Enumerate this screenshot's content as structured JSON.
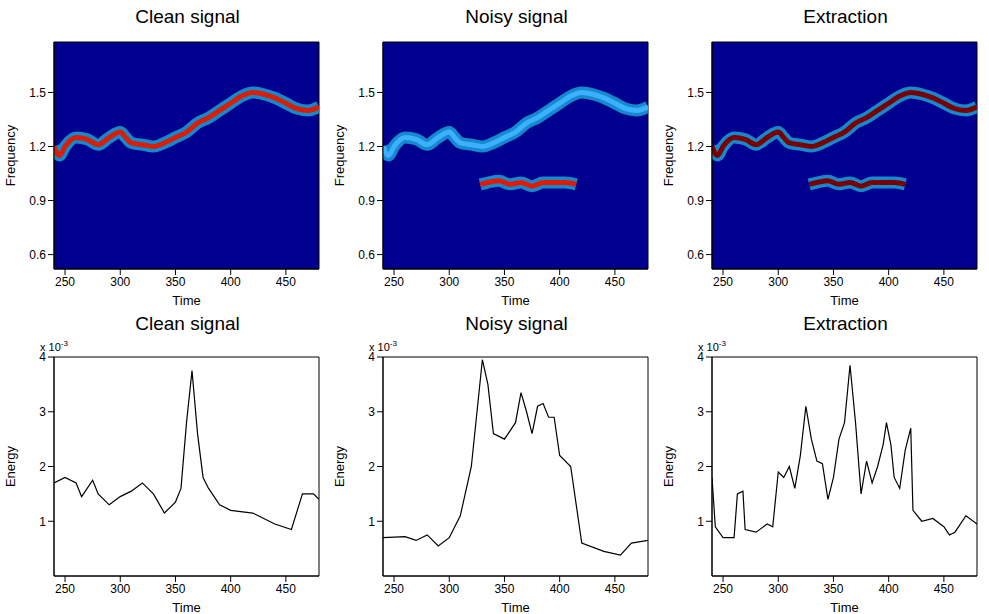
{
  "chart_data": [
    {
      "type": "heatmap",
      "title": "Clean signal",
      "x_label": "Time",
      "y_label": "Frequency",
      "xlim": [
        240,
        480
      ],
      "xticks": [
        250,
        300,
        350,
        400,
        450
      ],
      "ylim": [
        0.52,
        1.78
      ],
      "yticks": [
        0.6,
        0.9,
        1.2,
        1.5
      ],
      "series": [
        {
          "color": "#d81e05",
          "x": [
            240,
            245,
            250,
            260,
            270,
            280,
            290,
            300,
            305,
            310,
            320,
            330,
            340,
            350,
            360,
            370,
            380,
            390,
            400,
            410,
            420,
            430,
            440,
            450,
            460,
            470,
            480
          ],
          "values": [
            1.2,
            1.15,
            1.2,
            1.25,
            1.24,
            1.21,
            1.25,
            1.28,
            1.25,
            1.22,
            1.21,
            1.2,
            1.22,
            1.25,
            1.28,
            1.33,
            1.36,
            1.4,
            1.44,
            1.48,
            1.5,
            1.49,
            1.47,
            1.44,
            1.41,
            1.4,
            1.42
          ]
        }
      ]
    },
    {
      "type": "heatmap",
      "title": "Noisy signal",
      "x_label": "Time",
      "y_label": "Frequency",
      "xlim": [
        240,
        480
      ],
      "xticks": [
        250,
        300,
        350,
        400,
        450
      ],
      "ylim": [
        0.52,
        1.78
      ],
      "yticks": [
        0.6,
        0.9,
        1.2,
        1.5
      ],
      "series": [
        {
          "color": "#3ab0ff",
          "x": [
            240,
            245,
            250,
            260,
            270,
            280,
            290,
            300,
            305,
            310,
            320,
            330,
            340,
            350,
            360,
            370,
            380,
            390,
            400,
            410,
            420,
            430,
            440,
            450,
            460,
            470,
            480
          ],
          "values": [
            1.2,
            1.15,
            1.2,
            1.25,
            1.24,
            1.21,
            1.25,
            1.28,
            1.25,
            1.22,
            1.21,
            1.2,
            1.22,
            1.25,
            1.28,
            1.33,
            1.36,
            1.4,
            1.44,
            1.48,
            1.5,
            1.49,
            1.47,
            1.44,
            1.41,
            1.4,
            1.42
          ]
        },
        {
          "color": "#e01a05",
          "x": [
            328,
            335,
            345,
            355,
            365,
            375,
            385,
            395,
            405,
            415
          ],
          "values": [
            0.99,
            1.0,
            1.01,
            0.99,
            1.0,
            0.98,
            1.0,
            1.0,
            1.0,
            0.99
          ]
        }
      ]
    },
    {
      "type": "heatmap",
      "title": "Extraction",
      "x_label": "Time",
      "y_label": "Frequency",
      "xlim": [
        240,
        480
      ],
      "xticks": [
        250,
        300,
        350,
        400,
        450
      ],
      "ylim": [
        0.52,
        1.78
      ],
      "yticks": [
        0.6,
        0.9,
        1.2,
        1.5
      ],
      "series": [
        {
          "color": "#7a0000",
          "x": [
            240,
            245,
            250,
            260,
            270,
            280,
            290,
            300,
            305,
            310,
            320,
            330,
            340,
            350,
            360,
            370,
            380,
            390,
            400,
            410,
            420,
            430,
            440,
            450,
            460,
            470,
            480
          ],
          "values": [
            1.2,
            1.15,
            1.2,
            1.25,
            1.24,
            1.21,
            1.25,
            1.28,
            1.25,
            1.22,
            1.21,
            1.2,
            1.22,
            1.25,
            1.28,
            1.33,
            1.36,
            1.4,
            1.44,
            1.48,
            1.5,
            1.49,
            1.47,
            1.44,
            1.41,
            1.4,
            1.42
          ]
        },
        {
          "color": "#7a0000",
          "x": [
            328,
            335,
            345,
            355,
            365,
            375,
            385,
            395,
            405,
            415
          ],
          "values": [
            0.99,
            1.0,
            1.01,
            0.99,
            1.0,
            0.98,
            1.0,
            1.0,
            1.0,
            0.99
          ]
        }
      ]
    },
    {
      "type": "line",
      "title": "Clean signal",
      "x_label": "Time",
      "y_label": "Energy",
      "color": "#000000",
      "annotation": {
        "text": "x 10",
        "superscript": "-3"
      },
      "xlim": [
        240,
        480
      ],
      "xticks": [
        250,
        300,
        350,
        400,
        450
      ],
      "ylim": [
        0,
        0.004
      ],
      "yticks": [
        {
          "value": 0.001,
          "label": "1"
        },
        {
          "value": 0.002,
          "label": "2"
        },
        {
          "value": 0.003,
          "label": "3"
        },
        {
          "value": 0.004,
          "label": "4"
        }
      ],
      "x": [
        240,
        250,
        260,
        265,
        275,
        280,
        290,
        300,
        310,
        320,
        330,
        340,
        350,
        355,
        360,
        365,
        370,
        375,
        380,
        390,
        400,
        420,
        440,
        455,
        465,
        475,
        480
      ],
      "values": [
        0.0017,
        0.0018,
        0.0017,
        0.00145,
        0.00175,
        0.0015,
        0.0013,
        0.00145,
        0.00155,
        0.0017,
        0.0015,
        0.00115,
        0.00135,
        0.0016,
        0.0028,
        0.00375,
        0.0026,
        0.0018,
        0.0016,
        0.0013,
        0.0012,
        0.00115,
        0.00095,
        0.00085,
        0.0015,
        0.0015,
        0.0014
      ]
    },
    {
      "type": "line",
      "title": "Noisy signal",
      "x_label": "Time",
      "y_label": "Energy",
      "color": "#000000",
      "annotation": {
        "text": "x 10",
        "superscript": "-3"
      },
      "xlim": [
        240,
        480
      ],
      "xticks": [
        250,
        300,
        350,
        400,
        450
      ],
      "ylim": [
        0,
        0.004
      ],
      "yticks": [
        {
          "value": 0.001,
          "label": "1"
        },
        {
          "value": 0.002,
          "label": "2"
        },
        {
          "value": 0.003,
          "label": "3"
        },
        {
          "value": 0.004,
          "label": "4"
        }
      ],
      "x": [
        240,
        260,
        270,
        280,
        290,
        300,
        310,
        320,
        330,
        335,
        340,
        350,
        360,
        365,
        370,
        375,
        380,
        385,
        390,
        395,
        400,
        410,
        415,
        420,
        440,
        455,
        465,
        480
      ],
      "values": [
        0.0007,
        0.00072,
        0.00065,
        0.00075,
        0.00055,
        0.0007,
        0.0011,
        0.002,
        0.00395,
        0.0035,
        0.0026,
        0.0025,
        0.0028,
        0.00335,
        0.003,
        0.0026,
        0.0031,
        0.00315,
        0.0029,
        0.0029,
        0.0022,
        0.002,
        0.0013,
        0.0006,
        0.00045,
        0.00038,
        0.0006,
        0.00065
      ]
    },
    {
      "type": "line",
      "title": "Extraction",
      "x_label": "Time",
      "y_label": "Energy",
      "color": "#000000",
      "annotation": {
        "text": "x 10",
        "superscript": "-3"
      },
      "xlim": [
        240,
        480
      ],
      "xticks": [
        250,
        300,
        350,
        400,
        450
      ],
      "ylim": [
        0,
        0.004
      ],
      "yticks": [
        {
          "value": 0.001,
          "label": "1"
        },
        {
          "value": 0.002,
          "label": "2"
        },
        {
          "value": 0.003,
          "label": "3"
        },
        {
          "value": 0.004,
          "label": "4"
        }
      ],
      "x": [
        240,
        243,
        250,
        260,
        263,
        268,
        270,
        280,
        290,
        295,
        300,
        305,
        310,
        315,
        320,
        325,
        330,
        335,
        340,
        345,
        350,
        355,
        360,
        365,
        370,
        375,
        380,
        385,
        390,
        395,
        398,
        402,
        405,
        410,
        415,
        420,
        422,
        430,
        440,
        450,
        455,
        460,
        470,
        480
      ],
      "values": [
        0.0018,
        0.0009,
        0.0007,
        0.0007,
        0.0015,
        0.00155,
        0.00085,
        0.0008,
        0.00095,
        0.0009,
        0.0019,
        0.0018,
        0.002,
        0.0016,
        0.0022,
        0.0031,
        0.0025,
        0.0021,
        0.00205,
        0.0014,
        0.0018,
        0.0025,
        0.0028,
        0.00385,
        0.0028,
        0.0015,
        0.0021,
        0.0017,
        0.002,
        0.0024,
        0.0028,
        0.0024,
        0.0018,
        0.0016,
        0.0023,
        0.0027,
        0.0012,
        0.001,
        0.00105,
        0.0009,
        0.00075,
        0.0008,
        0.0011,
        0.00095
      ]
    }
  ]
}
